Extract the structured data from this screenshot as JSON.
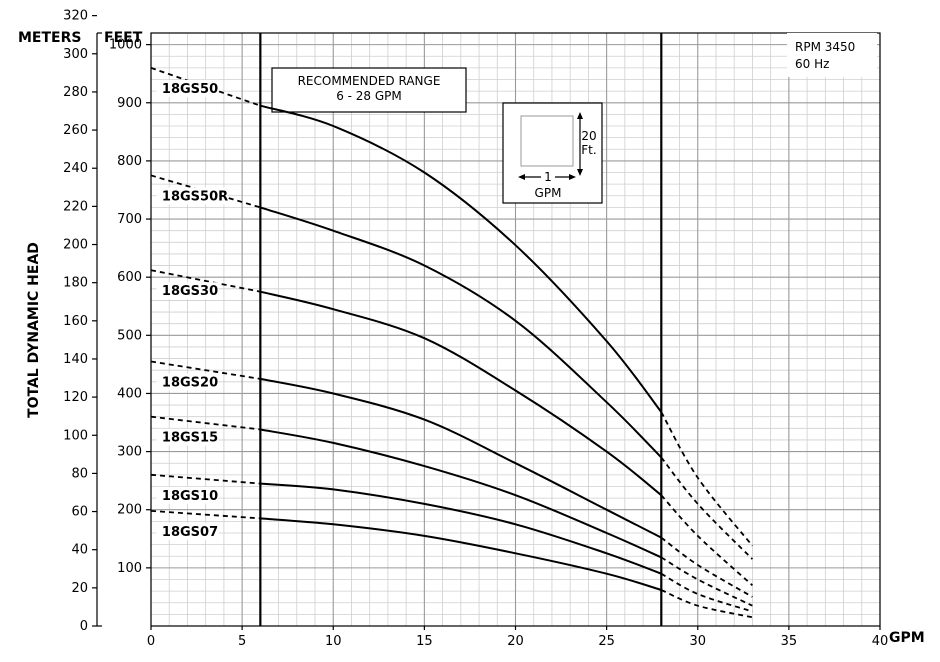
{
  "chart_data": {
    "type": "line",
    "title": "",
    "xlabel": "GPM",
    "ylabel": "TOTAL DYNAMIC HEAD",
    "y_left_unit": "METERS",
    "y_right_unit": "FEET",
    "xlim": [
      0,
      40
    ],
    "ylim_feet": [
      0,
      1020
    ],
    "ylim_meters": [
      0,
      310.9
    ],
    "x_ticks": [
      "0",
      "5",
      "10",
      "15",
      "20",
      "25",
      "30",
      "35",
      "40"
    ],
    "feet_ticks": [
      "100",
      "200",
      "300",
      "400",
      "500",
      "600",
      "700",
      "800",
      "900",
      "1000"
    ],
    "meter_ticks": [
      "0",
      "20",
      "40",
      "60",
      "80",
      "100",
      "120",
      "140",
      "160",
      "180",
      "200",
      "220",
      "240",
      "260",
      "280",
      "300",
      "320"
    ],
    "grid": true,
    "recommended_range": {
      "label_line1": "RECOMMENDED RANGE",
      "label_line2": "6 - 28 GPM",
      "x_min": 6,
      "x_max": 28
    },
    "scale_key": {
      "vertical_label_1": "20",
      "vertical_label_2": "Ft.",
      "horizontal_label_1": "1",
      "horizontal_label_2": "GPM"
    },
    "note_line1": "RPM 3450",
    "note_line2": "60 Hz",
    "series": [
      {
        "name": "18GS50",
        "solid": [
          [
            6,
            895
          ],
          [
            10,
            860
          ],
          [
            15,
            780
          ],
          [
            20,
            655
          ],
          [
            25,
            490
          ],
          [
            28,
            368
          ]
        ],
        "dashed_low": [
          [
            0,
            960
          ],
          [
            6,
            895
          ]
        ],
        "dashed_high": [
          [
            28,
            368
          ],
          [
            30,
            255
          ],
          [
            33,
            138
          ]
        ]
      },
      {
        "name": "18GS50R",
        "solid": [
          [
            6,
            720
          ],
          [
            10,
            680
          ],
          [
            15,
            620
          ],
          [
            20,
            525
          ],
          [
            25,
            385
          ],
          [
            28,
            290
          ]
        ],
        "dashed_low": [
          [
            0,
            775
          ],
          [
            6,
            720
          ]
        ],
        "dashed_high": [
          [
            28,
            290
          ],
          [
            30,
            210
          ],
          [
            33,
            115
          ]
        ]
      },
      {
        "name": "18GS30",
        "solid": [
          [
            6,
            575
          ],
          [
            10,
            545
          ],
          [
            15,
            495
          ],
          [
            20,
            405
          ],
          [
            25,
            300
          ],
          [
            28,
            225
          ]
        ],
        "dashed_low": [
          [
            0,
            612
          ],
          [
            6,
            575
          ]
        ],
        "dashed_high": [
          [
            28,
            225
          ],
          [
            30,
            155
          ],
          [
            33,
            70
          ]
        ]
      },
      {
        "name": "18GS20",
        "solid": [
          [
            6,
            425
          ],
          [
            10,
            400
          ],
          [
            15,
            355
          ],
          [
            20,
            280
          ],
          [
            25,
            200
          ],
          [
            28,
            152
          ]
        ],
        "dashed_low": [
          [
            0,
            455
          ],
          [
            6,
            425
          ]
        ],
        "dashed_high": [
          [
            28,
            152
          ],
          [
            30,
            105
          ],
          [
            33,
            50
          ]
        ]
      },
      {
        "name": "18GS15",
        "solid": [
          [
            6,
            338
          ],
          [
            10,
            315
          ],
          [
            15,
            275
          ],
          [
            20,
            225
          ],
          [
            25,
            160
          ],
          [
            28,
            118
          ]
        ],
        "dashed_low": [
          [
            0,
            360
          ],
          [
            6,
            338
          ]
        ],
        "dashed_high": [
          [
            28,
            118
          ],
          [
            30,
            80
          ],
          [
            33,
            35
          ]
        ]
      },
      {
        "name": "18GS10",
        "solid": [
          [
            6,
            245
          ],
          [
            10,
            235
          ],
          [
            15,
            210
          ],
          [
            20,
            175
          ],
          [
            25,
            125
          ],
          [
            28,
            90
          ]
        ],
        "dashed_low": [
          [
            0,
            260
          ],
          [
            6,
            245
          ]
        ],
        "dashed_high": [
          [
            28,
            90
          ],
          [
            30,
            55
          ],
          [
            33,
            25
          ]
        ]
      },
      {
        "name": "18GS07",
        "solid": [
          [
            6,
            185
          ],
          [
            10,
            175
          ],
          [
            15,
            155
          ],
          [
            20,
            125
          ],
          [
            25,
            90
          ],
          [
            28,
            62
          ]
        ],
        "dashed_low": [
          [
            0,
            198
          ],
          [
            6,
            185
          ]
        ],
        "dashed_high": [
          [
            28,
            62
          ],
          [
            30,
            35
          ],
          [
            33,
            15
          ]
        ]
      }
    ]
  }
}
